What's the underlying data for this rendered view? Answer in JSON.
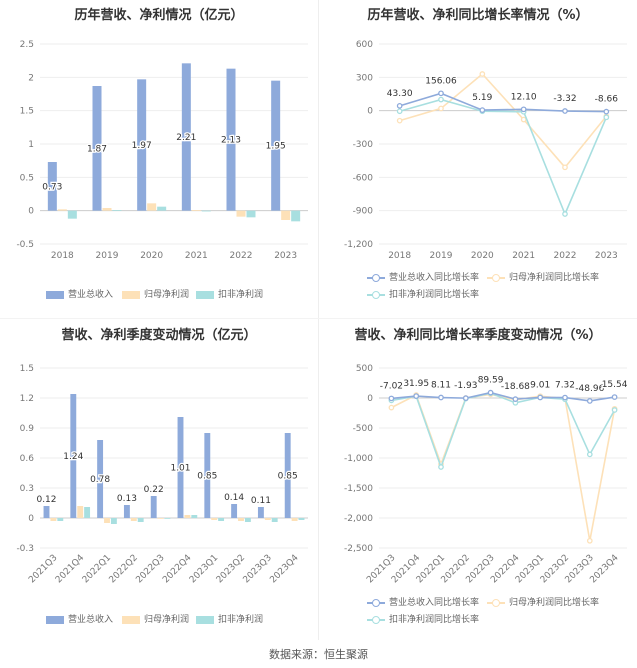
{
  "footer": {
    "source": "数据来源：恒生聚源"
  },
  "colors": {
    "revenue": "#8eaadb",
    "net_profit": "#fde1b8",
    "deducted": "#a8dfe0",
    "revenue_line": "#8eaadb",
    "net_line": "#fde1b8",
    "deducted_line": "#a8dfe0"
  },
  "chart_data": [
    {
      "id": "annual-values",
      "type": "bar",
      "title": "历年营收、净利情况（亿元）",
      "categories": [
        "2018",
        "2019",
        "2020",
        "2021",
        "2022",
        "2023"
      ],
      "ylim": [
        -0.5,
        2.5
      ],
      "yticks": [
        -0.5,
        0,
        0.5,
        1,
        1.5,
        2,
        2.5
      ],
      "ytick_labels": [
        "-0.5",
        "0",
        "0.5",
        "1",
        "1.5",
        "2",
        "2.5"
      ],
      "series": [
        {
          "name": "营业总收入",
          "values": [
            0.73,
            1.87,
            1.97,
            2.21,
            2.13,
            1.95
          ],
          "labels": [
            "0.73",
            "1.87",
            "1.97",
            "2.21",
            "2.13",
            "1.95"
          ]
        },
        {
          "name": "归母净利润",
          "values": [
            0.02,
            0.04,
            0.11,
            0.01,
            -0.09,
            -0.14
          ]
        },
        {
          "name": "扣非净利润",
          "values": [
            -0.12,
            0.01,
            0.06,
            0.0,
            -0.1,
            -0.16
          ]
        }
      ],
      "legend": "bottom"
    },
    {
      "id": "annual-growth",
      "type": "line",
      "title": "历年营收、净利同比增长率情况（%）",
      "categories": [
        "2018",
        "2019",
        "2020",
        "2021",
        "2022",
        "2023"
      ],
      "ylim": [
        -1200,
        600
      ],
      "yticks": [
        -1200,
        -900,
        -600,
        -300,
        0,
        300,
        600
      ],
      "ytick_labels": [
        "-1,200",
        "-900",
        "-600",
        "-300",
        "0",
        "300",
        "600"
      ],
      "series": [
        {
          "name": "营业总收入同比增长率",
          "values": [
            43.3,
            156.06,
            5.19,
            12.1,
            -3.32,
            -8.66
          ],
          "labels": [
            "43.30",
            "156.06",
            "5.19",
            "12.10",
            "-3.32",
            "-8.66"
          ]
        },
        {
          "name": "归母净利润同比增长率",
          "values": [
            -90,
            20,
            330,
            -80,
            -510,
            -50
          ]
        },
        {
          "name": "扣非净利润同比增长率",
          "values": [
            -5,
            100,
            -5,
            -10,
            -930,
            -60
          ]
        }
      ],
      "legend": "bottom"
    },
    {
      "id": "quarterly-values",
      "type": "bar",
      "title": "营收、净利季度变动情况（亿元）",
      "categories": [
        "2021Q3",
        "2021Q4",
        "2022Q1",
        "2022Q2",
        "2022Q3",
        "2022Q4",
        "2023Q1",
        "2023Q2",
        "2023Q3",
        "2023Q4"
      ],
      "ylim": [
        -0.3,
        1.5
      ],
      "yticks": [
        -0.3,
        0,
        0.3,
        0.6,
        0.9,
        1.2,
        1.5
      ],
      "ytick_labels": [
        "-0.3",
        "0",
        "0.3",
        "0.6",
        "0.9",
        "1.2",
        "1.5"
      ],
      "series": [
        {
          "name": "营业总收入",
          "values": [
            0.12,
            1.24,
            0.78,
            0.13,
            0.22,
            1.01,
            0.85,
            0.14,
            0.11,
            0.85
          ],
          "labels": [
            "0.12",
            "1.24",
            "0.78",
            "0.13",
            "0.22",
            "1.01",
            "0.85",
            "0.14",
            "0.11",
            "0.85"
          ]
        },
        {
          "name": "归母净利润",
          "values": [
            -0.03,
            0.12,
            -0.05,
            -0.03,
            0.0,
            0.03,
            -0.02,
            -0.03,
            -0.02,
            -0.03
          ]
        },
        {
          "name": "扣非净利润",
          "values": [
            -0.03,
            0.11,
            -0.06,
            -0.04,
            0.0,
            0.03,
            -0.03,
            -0.04,
            -0.04,
            -0.02
          ]
        }
      ],
      "legend": "bottom"
    },
    {
      "id": "quarterly-growth",
      "type": "line",
      "title": "营收、净利同比增长率季度变动情况（%）",
      "categories": [
        "2021Q3",
        "2021Q4",
        "2022Q1",
        "2022Q2",
        "2022Q3",
        "2022Q4",
        "2023Q1",
        "2023Q2",
        "2023Q3",
        "2023Q4"
      ],
      "ylim": [
        -2500,
        500
      ],
      "yticks": [
        -2500,
        -2000,
        -1500,
        -1000,
        -500,
        0,
        500
      ],
      "ytick_labels": [
        "-2,500",
        "-2,000",
        "-1,500",
        "-1,000",
        "-500",
        "0",
        "500"
      ],
      "series": [
        {
          "name": "营业总收入同比增长率",
          "values": [
            -7.02,
            31.95,
            8.11,
            -1.93,
            89.59,
            -18.68,
            9.01,
            7.32,
            -48.96,
            15.54
          ],
          "labels": [
            "-7.02",
            "31.95",
            "8.11",
            "-1.93",
            "89.59",
            "-18.68",
            "9.01",
            "7.32",
            "-48.96",
            "15.54"
          ]
        },
        {
          "name": "归母净利润同比增长率",
          "values": [
            -160,
            50,
            -1100,
            0,
            60,
            -30,
            30,
            -10,
            -2380,
            -180
          ]
        },
        {
          "name": "扣非净利润同比增长率",
          "values": [
            -40,
            30,
            -1150,
            -10,
            80,
            -80,
            10,
            -20,
            -940,
            -200
          ]
        }
      ],
      "legend": "bottom"
    }
  ]
}
